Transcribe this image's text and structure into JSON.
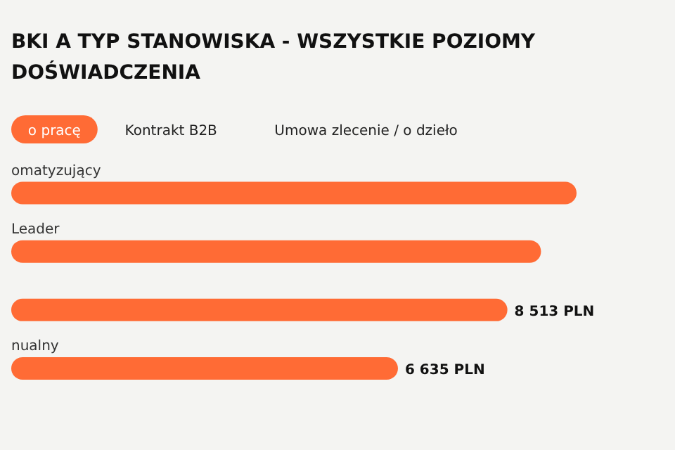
{
  "chart_data": {
    "type": "bar",
    "orientation": "horizontal",
    "title": "BKI A TYP STANOWISKA - WSZYSTKIE POZIOMY DOŚWIADCZENIA",
    "annotations": [
      "o pracę",
      "Kontrakt B2B",
      "Umowa zlecenie / o dzieło"
    ],
    "categories": [
      "omatyzujący",
      "Leader",
      null,
      "nualny"
    ],
    "values": [
      9700,
      9090,
      8513,
      6635
    ],
    "value_labels": [
      null,
      null,
      "8 513 PLN",
      "6 635 PLN"
    ],
    "color": "#ff6b35"
  }
}
